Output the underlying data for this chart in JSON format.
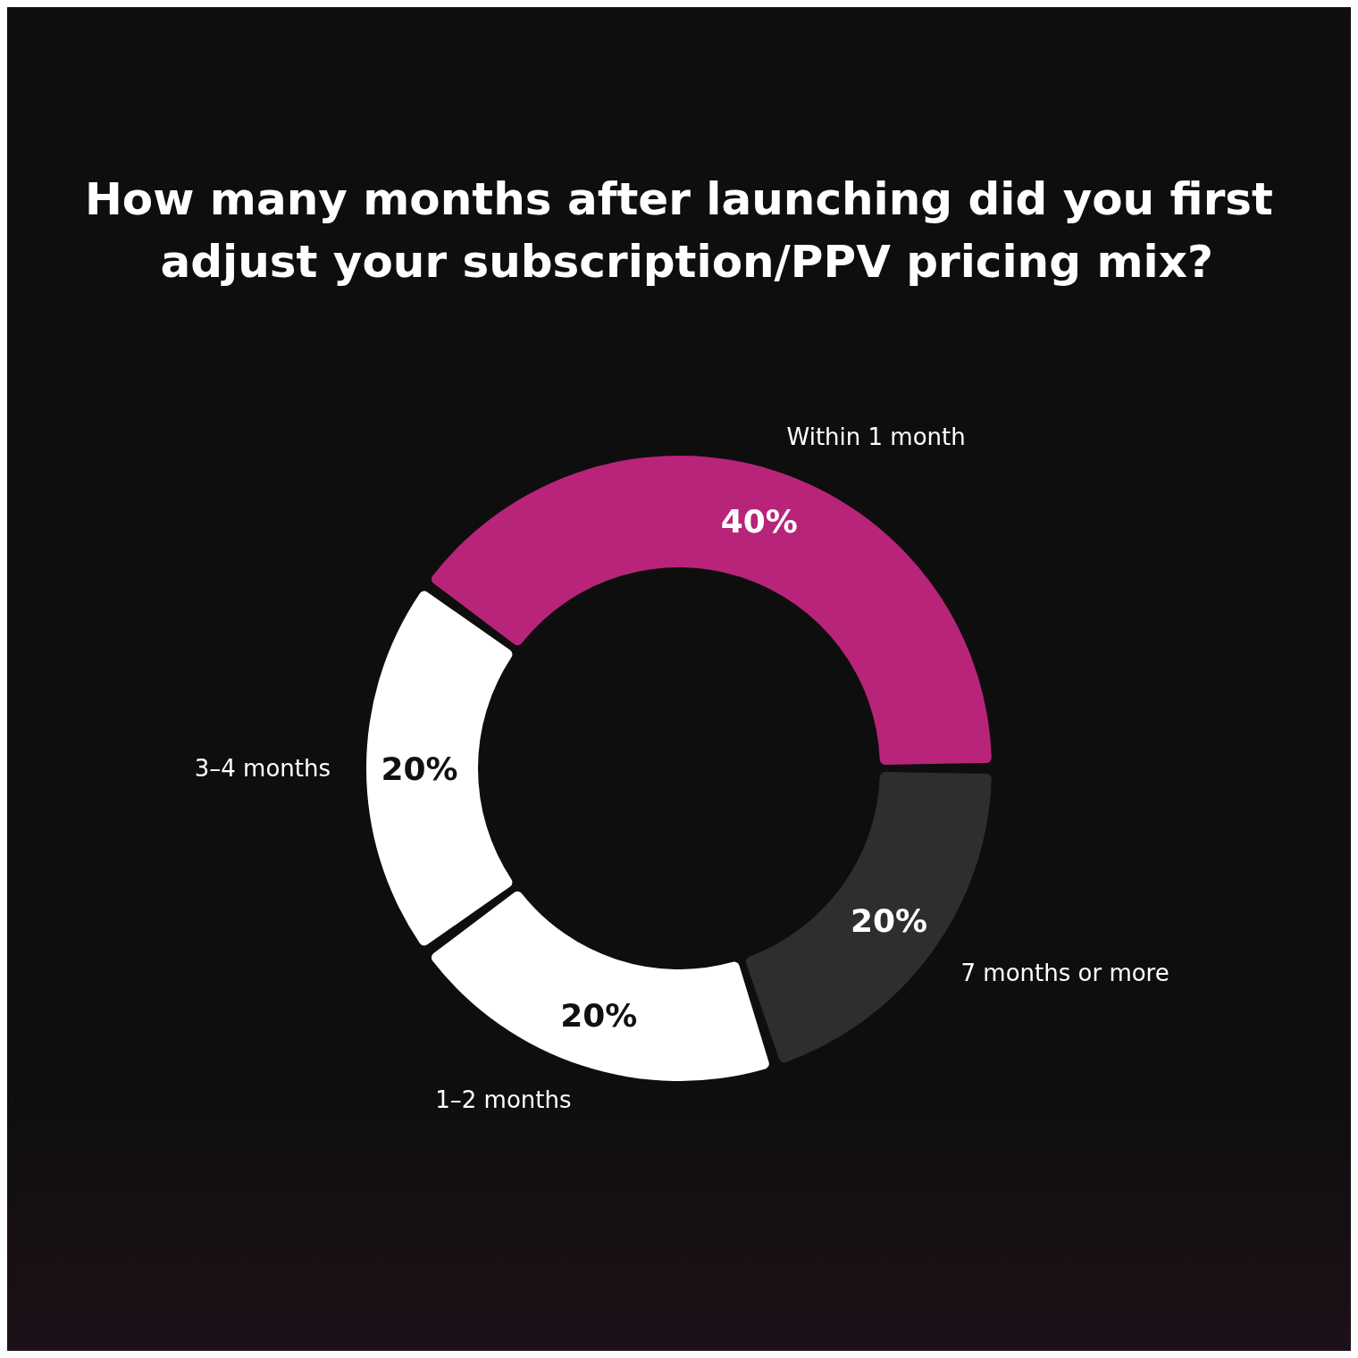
{
  "chart_data": {
    "type": "donut",
    "title": "How many months after launching did you first adjust your subscription/PPV pricing mix?",
    "categories": [
      "Within 1 month",
      "7 months or more",
      "1–2 months",
      "3–4 months"
    ],
    "values": [
      40,
      20,
      20,
      20
    ],
    "colors": [
      "#b8247a",
      "#2e2e2e",
      "#ffffff",
      "#ffffff"
    ],
    "value_labels": [
      "40%",
      "20%",
      "20%",
      "20%"
    ],
    "legend": false
  }
}
